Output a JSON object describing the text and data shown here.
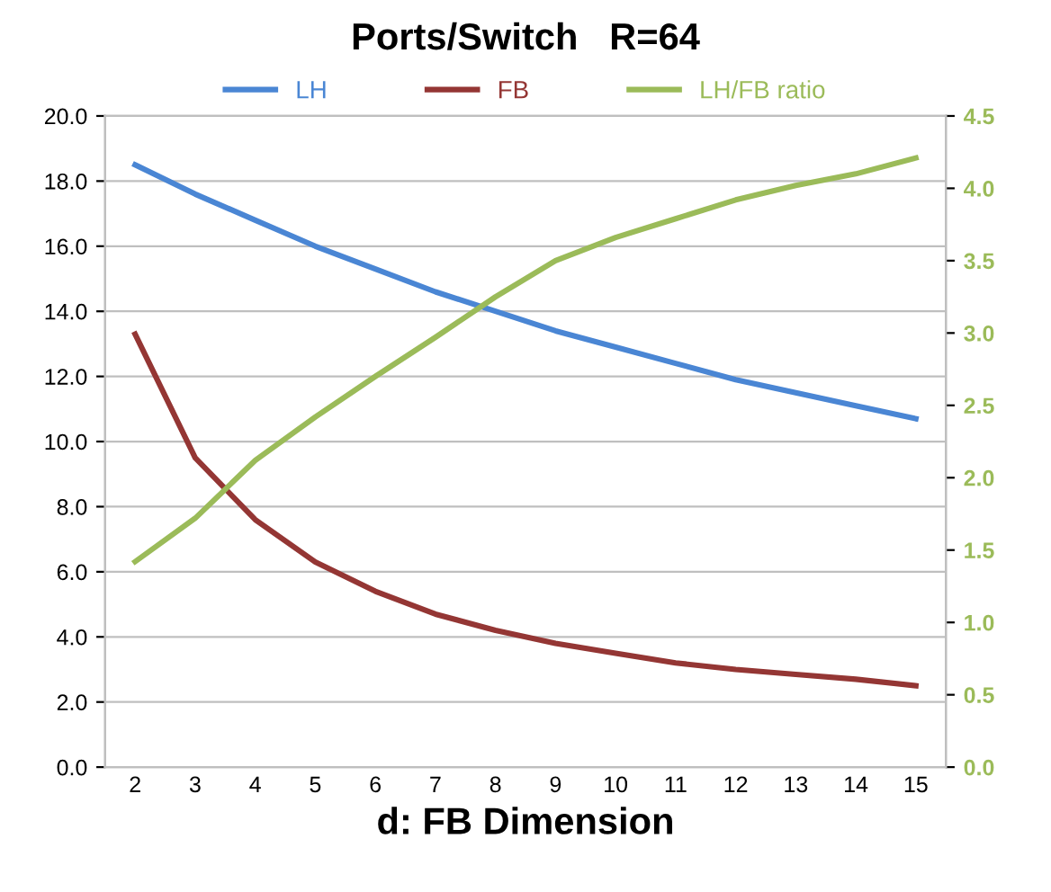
{
  "chart_data": {
    "type": "line",
    "title": "Ports/Switch   R=64",
    "xlabel": "d: FB Dimension",
    "categories": [
      "2",
      "3",
      "4",
      "5",
      "6",
      "7",
      "8",
      "9",
      "10",
      "11",
      "12",
      "13",
      "14",
      "15"
    ],
    "series": [
      {
        "name": "LH",
        "color": "#4a86d4",
        "values": [
          18.5,
          17.6,
          16.8,
          16.0,
          15.3,
          14.6,
          14.0,
          13.4,
          12.9,
          12.4,
          11.9,
          11.5,
          11.1,
          10.7
        ]
      },
      {
        "name": "FB",
        "color": "#943634",
        "values": [
          13.3,
          9.5,
          7.6,
          6.3,
          5.4,
          4.7,
          4.2,
          3.8,
          3.5,
          3.2,
          3.0,
          2.85,
          2.7,
          2.5
        ]
      },
      {
        "name": "LH/FB ratio",
        "color": "#9bbb59",
        "axis": "y2",
        "values": [
          1.42,
          1.72,
          2.12,
          2.42,
          2.7,
          2.97,
          3.25,
          3.5,
          3.66,
          3.79,
          3.92,
          4.02,
          4.1,
          4.21
        ]
      }
    ],
    "ylim": [
      0,
      20
    ],
    "yticks": [
      {
        "value": 0,
        "label": "0.0"
      },
      {
        "value": 2,
        "label": "2.0"
      },
      {
        "value": 4,
        "label": "4.0"
      },
      {
        "value": 6,
        "label": "6.0"
      },
      {
        "value": 8,
        "label": "8.0"
      },
      {
        "value": 10,
        "label": "10.0"
      },
      {
        "value": 12,
        "label": "12.0"
      },
      {
        "value": 14,
        "label": "14.0"
      },
      {
        "value": 16,
        "label": "16.0"
      },
      {
        "value": 18,
        "label": "18.0"
      },
      {
        "value": 20,
        "label": "20.0"
      }
    ],
    "y2lim": [
      0,
      4.5
    ],
    "y2ticks": [
      {
        "value": 0,
        "label": "0.0"
      },
      0.5,
      {
        "value": 1,
        "label": "1.0"
      },
      1.5,
      {
        "value": 2,
        "label": "2.0"
      },
      2.5,
      {
        "value": 3,
        "label": "3.0"
      },
      3.5,
      {
        "value": 4,
        "label": "4.0"
      },
      4.5
    ],
    "grid": true,
    "legend": "top",
    "marker": "none",
    "line_style": "solid"
  }
}
